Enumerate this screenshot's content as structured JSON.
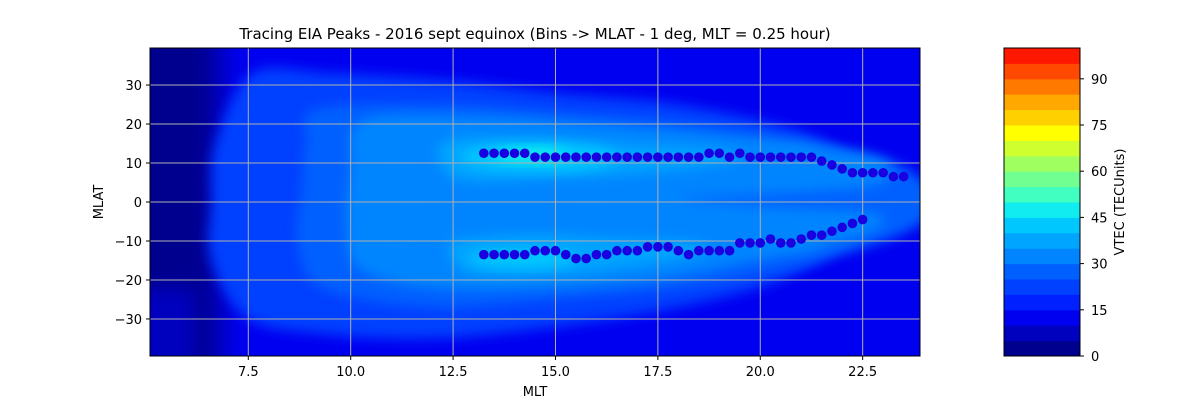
{
  "chart_data": {
    "type": "heatmap",
    "title": "Tracing EIA Peaks - 2016 sept equinox (Bins -> MLAT - 1 deg, MLT = 0.25 hour)",
    "xlabel": "MLT",
    "ylabel": "MLAT",
    "xlim": [
      5.1,
      23.9
    ],
    "ylim": [
      -39.5,
      39.5
    ],
    "xticks": [
      7.5,
      10.0,
      12.5,
      15.0,
      17.5,
      20.0,
      22.5
    ],
    "xtick_labels": [
      "7.5",
      "10.0",
      "12.5",
      "15.0",
      "17.5",
      "20.0",
      "22.5"
    ],
    "yticks": [
      -30,
      -20,
      -10,
      0,
      10,
      20,
      30
    ],
    "ytick_labels": [
      "−30",
      "−20",
      "−10",
      "0",
      "10",
      "20",
      "30"
    ],
    "grid": true,
    "colorbar": {
      "label": "VTEC (TECUnits)",
      "min": 0,
      "max": 100,
      "levels": 20,
      "ticks": [
        0,
        15,
        30,
        45,
        60,
        75,
        90
      ],
      "tick_labels": [
        "0",
        "15",
        "30",
        "45",
        "60",
        "75",
        "90"
      ],
      "colors": [
        "#00008f",
        "#0000bf",
        "#0000f0",
        "#0020ff",
        "#0040ff",
        "#0060ff",
        "#0085ff",
        "#00a5ff",
        "#00c8ff",
        "#10ecf0",
        "#40ffc0",
        "#70ff90",
        "#a0ff60",
        "#d0ff30",
        "#ffff00",
        "#ffd000",
        "#ffa800",
        "#ff7800",
        "#ff4800",
        "#ff1800"
      ]
    },
    "field_description": "VTEC contours; two crest bands (peak ~45 TECU near MLT 14-15 at MLAT +11 and -14) extending from MLT ~9 to ~23.5; background ~12-15 TECU, darkest (<5) before MLT 7",
    "series": [
      {
        "name": "EIA peak (north)",
        "color": "#1a00e0",
        "x": [
          13.25,
          13.5,
          13.75,
          14.0,
          14.25,
          14.5,
          14.75,
          15.0,
          15.25,
          15.5,
          15.75,
          16.0,
          16.25,
          16.5,
          16.75,
          17.0,
          17.25,
          17.5,
          17.75,
          18.0,
          18.25,
          18.5,
          18.75,
          19.0,
          19.25,
          19.5,
          19.75,
          20.0,
          20.25,
          20.5,
          20.75,
          21.0,
          21.25,
          21.5,
          21.75,
          22.0,
          22.25,
          22.5,
          22.75,
          23.0,
          23.25,
          23.5
        ],
        "y": [
          12.5,
          12.5,
          12.5,
          12.5,
          12.5,
          11.5,
          11.5,
          11.5,
          11.5,
          11.5,
          11.5,
          11.5,
          11.5,
          11.5,
          11.5,
          11.5,
          11.5,
          11.5,
          11.5,
          11.5,
          11.5,
          11.5,
          12.5,
          12.5,
          11.5,
          12.5,
          11.5,
          11.5,
          11.5,
          11.5,
          11.5,
          11.5,
          11.5,
          10.5,
          9.5,
          8.5,
          7.5,
          7.5,
          7.5,
          7.5,
          6.5,
          6.5
        ]
      },
      {
        "name": "EIA peak (south)",
        "color": "#1a00e0",
        "x": [
          13.25,
          13.5,
          13.75,
          14.0,
          14.25,
          14.5,
          14.75,
          15.0,
          15.25,
          15.5,
          15.75,
          16.0,
          16.25,
          16.5,
          16.75,
          17.0,
          17.25,
          17.5,
          17.75,
          18.0,
          18.25,
          18.5,
          18.75,
          19.0,
          19.25,
          19.5,
          19.75,
          20.0,
          20.25,
          20.5,
          20.75,
          21.0,
          21.25,
          21.5,
          21.75,
          22.0,
          22.25,
          22.5
        ],
        "y": [
          -13.5,
          -13.5,
          -13.5,
          -13.5,
          -13.5,
          -12.5,
          -12.5,
          -12.5,
          -13.5,
          -14.5,
          -14.5,
          -13.5,
          -13.5,
          -12.5,
          -12.5,
          -12.5,
          -11.5,
          -11.5,
          -11.5,
          -12.5,
          -13.5,
          -12.5,
          -12.5,
          -12.5,
          -12.5,
          -10.5,
          -10.5,
          -10.5,
          -9.5,
          -10.5,
          -10.5,
          -9.5,
          -8.5,
          -8.5,
          -7.5,
          -6.5,
          -5.5,
          -4.5
        ]
      }
    ]
  }
}
